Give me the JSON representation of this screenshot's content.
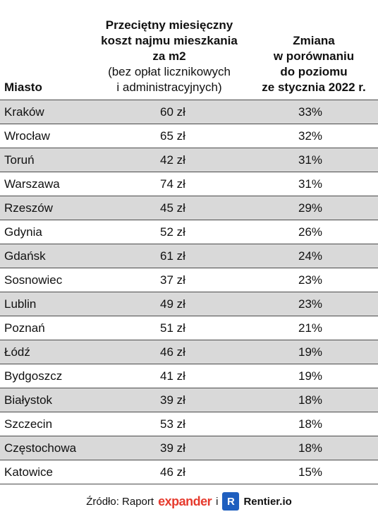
{
  "header": {
    "city": "Miasto",
    "price_title_lines": [
      "Przeciętny miesięczny",
      "koszt najmu mieszkania",
      "za m2"
    ],
    "price_note_lines": [
      "(bez opłat licznikowych",
      "i administracyjnych)"
    ],
    "change_lines": [
      "Zmiana",
      "w porównaniu",
      "do poziomu",
      "ze stycznia 2022 r."
    ]
  },
  "rows": [
    {
      "city": "Kraków",
      "price": "60 zł",
      "change": "33%",
      "shaded": true
    },
    {
      "city": "Wrocław",
      "price": "65 zł",
      "change": "32%",
      "shaded": false
    },
    {
      "city": "Toruń",
      "price": "42 zł",
      "change": "31%",
      "shaded": true
    },
    {
      "city": "Warszawa",
      "price": "74 zł",
      "change": "31%",
      "shaded": false
    },
    {
      "city": "Rzeszów",
      "price": "45 zł",
      "change": "29%",
      "shaded": true
    },
    {
      "city": "Gdynia",
      "price": "52 zł",
      "change": "26%",
      "shaded": false
    },
    {
      "city": "Gdańsk",
      "price": "61 zł",
      "change": "24%",
      "shaded": true
    },
    {
      "city": "Sosnowiec",
      "price": "37 zł",
      "change": "23%",
      "shaded": false
    },
    {
      "city": "Lublin",
      "price": "49 zł",
      "change": "23%",
      "shaded": true
    },
    {
      "city": "Poznań",
      "price": "51 zł",
      "change": "21%",
      "shaded": false
    },
    {
      "city": "Łódź",
      "price": "46 zł",
      "change": "19%",
      "shaded": true
    },
    {
      "city": "Bydgoszcz",
      "price": "41 zł",
      "change": "19%",
      "shaded": false
    },
    {
      "city": "Białystok",
      "price": "39 zł",
      "change": "18%",
      "shaded": true
    },
    {
      "city": "Szczecin",
      "price": "53 zł",
      "change": "18%",
      "shaded": false
    },
    {
      "city": "Częstochowa",
      "price": "39 zł",
      "change": "18%",
      "shaded": true
    },
    {
      "city": "Katowice",
      "price": "46 zł",
      "change": "15%",
      "shaded": false
    }
  ],
  "footer": {
    "source_label": "Źródło: Raport",
    "expander_brand": "expander",
    "connector": "i",
    "r_logo": "R",
    "rentier_brand": "Rentier.io"
  },
  "colors": {
    "shaded_row": "#d9d9d9",
    "expander_red": "#e63b2e",
    "rentier_blue": "#1f5fbf"
  }
}
